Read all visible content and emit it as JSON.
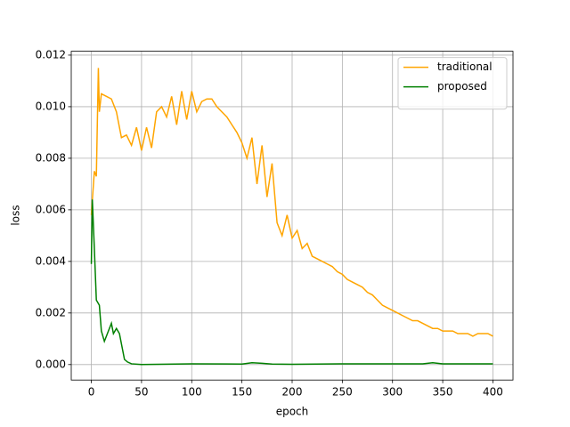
{
  "chart_data": {
    "type": "line",
    "x_label": "epoch",
    "y_label": "loss",
    "xlim": [
      -20,
      420
    ],
    "ylim": [
      -0.0006,
      0.01215
    ],
    "xticks": [
      0,
      50,
      100,
      150,
      200,
      250,
      300,
      350,
      400
    ],
    "yticks": [
      {
        "value": 0,
        "label": "0.000"
      },
      {
        "value": 0.002,
        "label": "0.002"
      },
      {
        "value": 0.004,
        "label": "0.004"
      },
      {
        "value": 0.006,
        "label": "0.006"
      },
      {
        "value": 0.008,
        "label": "0.008"
      },
      {
        "value": 0.01,
        "label": "0.010"
      },
      {
        "value": 0.012,
        "label": "0.012"
      }
    ],
    "grid": true,
    "legend": "upper right",
    "series": [
      {
        "name": "traditional",
        "color": "#ffa500",
        "x": [
          0,
          3,
          5,
          7,
          8,
          10,
          15,
          20,
          25,
          30,
          35,
          40,
          45,
          50,
          55,
          60,
          65,
          70,
          75,
          80,
          85,
          90,
          95,
          100,
          105,
          110,
          115,
          120,
          125,
          130,
          135,
          140,
          145,
          150,
          155,
          160,
          165,
          170,
          175,
          180,
          185,
          190,
          195,
          200,
          205,
          210,
          215,
          220,
          225,
          230,
          235,
          240,
          245,
          250,
          255,
          260,
          265,
          270,
          275,
          280,
          285,
          290,
          295,
          300,
          305,
          310,
          315,
          320,
          325,
          330,
          335,
          340,
          345,
          350,
          355,
          360,
          365,
          370,
          375,
          380,
          385,
          390,
          395,
          400
        ],
        "values": [
          0.0058,
          0.0075,
          0.0073,
          0.0115,
          0.0098,
          0.0105,
          0.0104,
          0.0103,
          0.0098,
          0.0088,
          0.0089,
          0.0085,
          0.0092,
          0.0083,
          0.0092,
          0.0084,
          0.0098,
          0.01,
          0.0096,
          0.0104,
          0.0093,
          0.0106,
          0.0095,
          0.0106,
          0.0098,
          0.0102,
          0.0103,
          0.0103,
          0.01,
          0.0098,
          0.0096,
          0.0093,
          0.009,
          0.0086,
          0.008,
          0.0088,
          0.007,
          0.0085,
          0.0065,
          0.0078,
          0.0055,
          0.005,
          0.0058,
          0.0049,
          0.0052,
          0.0045,
          0.0047,
          0.0042,
          0.0041,
          0.004,
          0.0039,
          0.0038,
          0.0036,
          0.0035,
          0.0033,
          0.0032,
          0.0031,
          0.003,
          0.0028,
          0.0027,
          0.0025,
          0.0023,
          0.0022,
          0.0021,
          0.002,
          0.0019,
          0.0018,
          0.0017,
          0.0017,
          0.0016,
          0.0015,
          0.0014,
          0.0014,
          0.0013,
          0.0013,
          0.0013,
          0.0012,
          0.0012,
          0.0012,
          0.0011,
          0.0012,
          0.0012,
          0.0012,
          0.0011
        ]
      },
      {
        "name": "proposed",
        "color": "#008000",
        "x": [
          0,
          1,
          3,
          5,
          8,
          10,
          13,
          16,
          20,
          22,
          25,
          28,
          30,
          33,
          36,
          40,
          50,
          100,
          150,
          160,
          170,
          180,
          200,
          250,
          300,
          330,
          340,
          350,
          400
        ],
        "values": [
          0.0039,
          0.0064,
          0.0045,
          0.0025,
          0.0023,
          0.0013,
          0.0009,
          0.0012,
          0.0016,
          0.0012,
          0.0014,
          0.0012,
          0.0008,
          0.0002,
          0.0001,
          3e-05,
          0,
          3e-05,
          2e-05,
          7e-05,
          5e-05,
          2e-05,
          1e-05,
          3e-05,
          3e-05,
          3e-05,
          7e-05,
          3e-05,
          3e-05
        ]
      }
    ]
  }
}
